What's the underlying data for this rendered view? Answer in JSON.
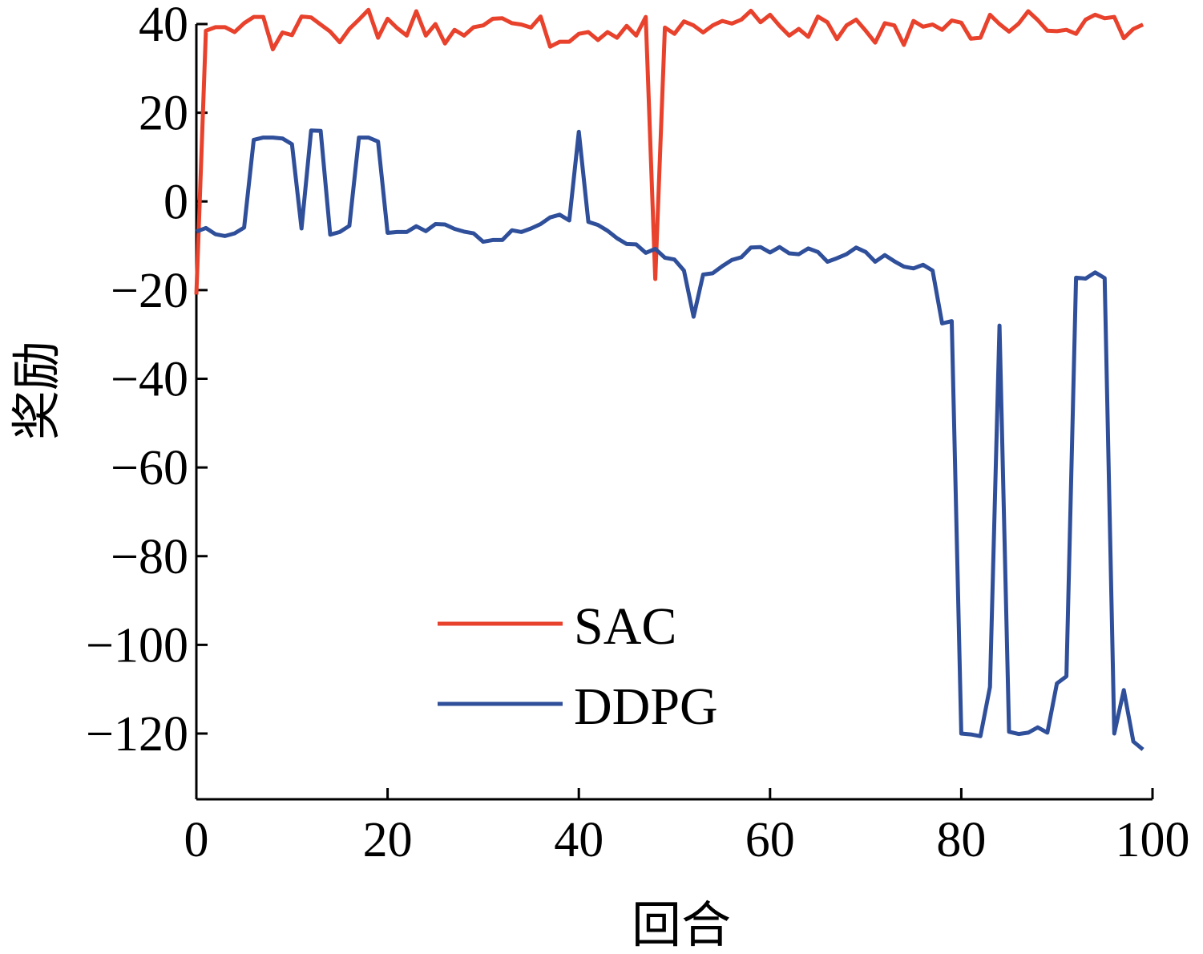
{
  "chart_data": {
    "type": "line",
    "title": "",
    "xlabel": "回合",
    "ylabel": "奖励",
    "xlim": [
      0,
      100
    ],
    "ylim": [
      -134,
      40
    ],
    "xticks": [
      0,
      20,
      40,
      60,
      80,
      100
    ],
    "yticks": [
      40,
      20,
      0,
      -20,
      -40,
      -60,
      -80,
      -100,
      -120
    ],
    "xtick_labels": [
      "0",
      "20",
      "40",
      "60",
      "80",
      "100"
    ],
    "ytick_labels": [
      "40",
      "20",
      "0",
      "−20",
      "−40",
      "−60",
      "−80",
      "−100",
      "−120"
    ],
    "grid": false,
    "legend_position": "lower-center",
    "series": [
      {
        "name": "SAC",
        "color": "#e8412c",
        "x": [
          0,
          1,
          2,
          3,
          4,
          5,
          6,
          7,
          8,
          9,
          10,
          11,
          12,
          13,
          14,
          15,
          16,
          17,
          18,
          19,
          20,
          21,
          22,
          23,
          24,
          25,
          26,
          27,
          28,
          29,
          30,
          31,
          32,
          33,
          34,
          35,
          36,
          37,
          38,
          39,
          40,
          41,
          42,
          43,
          44,
          45,
          46,
          47,
          48,
          49,
          50,
          51,
          52,
          53,
          54,
          55,
          56,
          57,
          58,
          59,
          60,
          61,
          62,
          63,
          64,
          65,
          66,
          67,
          68,
          69,
          70,
          71,
          72,
          73,
          74,
          75,
          76,
          77,
          78,
          79,
          80,
          81,
          82,
          83,
          84,
          85,
          86,
          87,
          88,
          89,
          90,
          91,
          92,
          93,
          94,
          95,
          96,
          97,
          98,
          99
        ],
        "values": [
          -21,
          38.5,
          39.3,
          39.3,
          38.2,
          40.2,
          41.6,
          41.6,
          34.3,
          38.1,
          37.5,
          41.7,
          41.5,
          39.9,
          38.3,
          35.9,
          38.9,
          41,
          43.2,
          36.9,
          41.2,
          39.1,
          37.4,
          42.9,
          37.4,
          40,
          35.6,
          38.7,
          37.4,
          39.3,
          39.7,
          41.2,
          41.3,
          40.2,
          39.9,
          39.2,
          41.7,
          34.9,
          36,
          36,
          37.8,
          38.2,
          36.4,
          38.2,
          36.9,
          39.6,
          37.4,
          41.6,
          -17.5,
          39.2,
          37.8,
          40.6,
          39.7,
          38.1,
          39.7,
          40.7,
          40.1,
          41,
          43,
          40.4,
          42.1,
          39.6,
          37.4,
          38.9,
          37.1,
          41.7,
          40.4,
          36.6,
          39.7,
          41,
          38.5,
          35.8,
          40.2,
          39.7,
          35.3,
          40.7,
          39.4,
          39.9,
          38.7,
          40.8,
          40.3,
          36.7,
          36.9,
          42.1,
          40,
          38.3,
          40.1,
          42.9,
          40.9,
          38.5,
          38.4,
          38.7,
          37.8,
          41,
          42.1,
          41.3,
          41.6,
          36.8,
          38.9,
          39.9
        ]
      },
      {
        "name": "DDPG",
        "color": "#2f4f9a",
        "x": [
          0,
          1,
          2,
          3,
          4,
          5,
          6,
          7,
          8,
          9,
          10,
          11,
          12,
          13,
          14,
          15,
          16,
          17,
          18,
          19,
          20,
          21,
          22,
          23,
          24,
          25,
          26,
          27,
          28,
          29,
          30,
          31,
          32,
          33,
          34,
          35,
          36,
          37,
          38,
          39,
          40,
          41,
          42,
          43,
          44,
          45,
          46,
          47,
          48,
          49,
          50,
          51,
          52,
          53,
          54,
          55,
          56,
          57,
          58,
          59,
          60,
          61,
          62,
          63,
          64,
          65,
          66,
          67,
          68,
          69,
          70,
          71,
          72,
          73,
          74,
          75,
          76,
          77,
          78,
          79,
          80,
          81,
          82,
          83,
          84,
          85,
          86,
          87,
          88,
          89,
          90,
          91,
          92,
          93,
          94,
          95,
          96,
          97,
          98,
          99
        ],
        "values": [
          -6.8,
          -6,
          -7.4,
          -7.8,
          -7.2,
          -5.9,
          13.9,
          14.4,
          14.4,
          14.2,
          12.9,
          -6.1,
          16,
          15.9,
          -7.5,
          -6.9,
          -5.5,
          14.4,
          14.4,
          13.5,
          -7.1,
          -6.9,
          -6.9,
          -5.6,
          -6.7,
          -5.1,
          -5.2,
          -6.2,
          -6.8,
          -7.2,
          -9.1,
          -8.7,
          -8.7,
          -6.5,
          -6.9,
          -6.1,
          -5.1,
          -3.6,
          -3,
          -4.3,
          15.7,
          -4.6,
          -5.3,
          -6.6,
          -8.3,
          -9.6,
          -9.7,
          -11.6,
          -10.7,
          -12.7,
          -13.1,
          -15.6,
          -26,
          -16.5,
          -16.2,
          -14.6,
          -13.2,
          -12.6,
          -10.4,
          -10.3,
          -11.5,
          -10.3,
          -11.7,
          -11.9,
          -10.6,
          -11.4,
          -13.6,
          -12.8,
          -11.9,
          -10.4,
          -11.4,
          -13.6,
          -12.1,
          -13.5,
          -14.7,
          -15.1,
          -14.3,
          -15.6,
          -27.5,
          -27,
          -120,
          -120.2,
          -120.6,
          -109.5,
          -28,
          -119.6,
          -120.1,
          -119.8,
          -118.6,
          -119.8,
          -108.7,
          -107.1,
          -17.2,
          -17.4,
          -16,
          -17.3,
          -120,
          -110.2,
          -121.8,
          -123.6
        ]
      }
    ]
  }
}
